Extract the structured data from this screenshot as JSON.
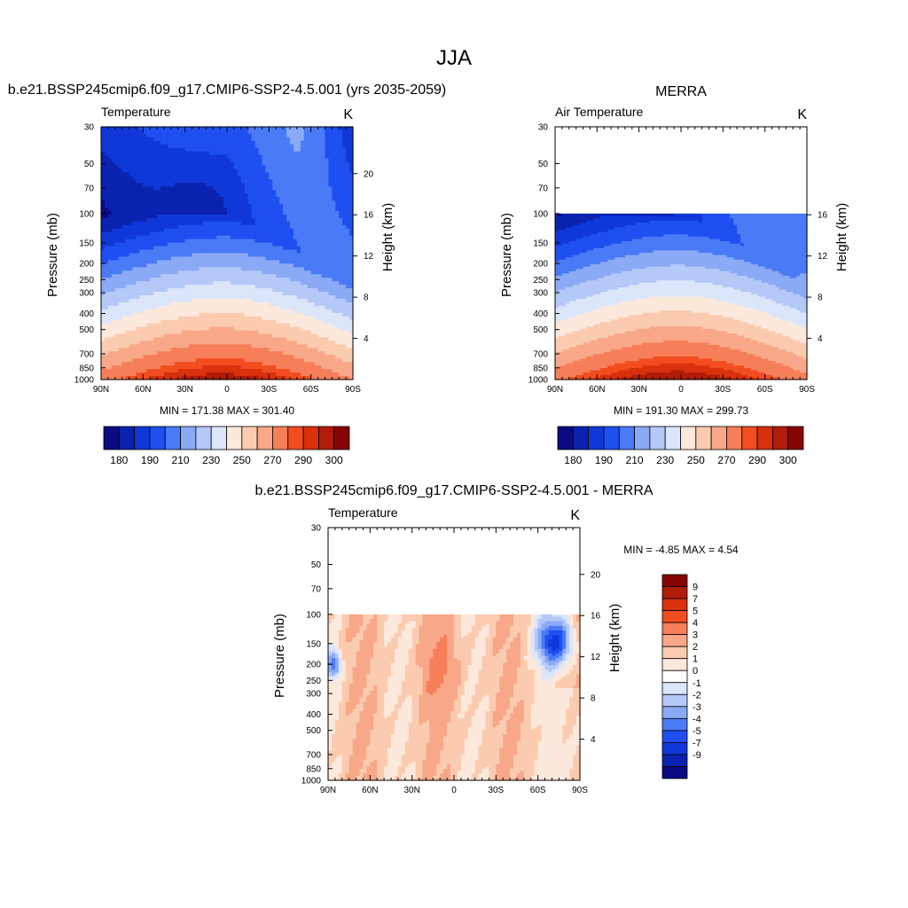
{
  "page": {
    "title": "JJA"
  },
  "chart_data": [
    {
      "type": "heatmap",
      "title": "b.e21.BSSP245cmip6.f09_g17.CMIP6-SSP2-4.5.001 (yrs 2035-2059)",
      "variable_label": "Temperature",
      "units": "K",
      "ylabel": "Pressure (mb)",
      "y2label": "Height (km)",
      "x_ticks": [
        "90N",
        "60N",
        "30N",
        "0",
        "30S",
        "60S",
        "90S"
      ],
      "y_ticks": [
        30,
        50,
        70,
        100,
        150,
        200,
        250,
        300,
        400,
        500,
        700,
        850,
        1000
      ],
      "y2_ticks": [
        4,
        8,
        12,
        16,
        20
      ],
      "ylim": [
        1000,
        30
      ],
      "min_max_text": "MIN = 171.38  MAX = 301.40",
      "colorbar_labels": [
        "180",
        "190",
        "210",
        "230",
        "250",
        "270",
        "290",
        "300"
      ],
      "colorbar_colors": [
        "#0a0a82",
        "#0a22b0",
        "#1038d8",
        "#1f4ff0",
        "#4a7af5",
        "#8aaaf5",
        "#b4c9f8",
        "#dbe6fb",
        "#fde9dc",
        "#fbcbb0",
        "#f8a888",
        "#f67f5a",
        "#f24d20",
        "#d9310e",
        "#b01c09",
        "#870404"
      ]
    },
    {
      "type": "heatmap",
      "title": "MERRA",
      "variable_label": "Air Temperature",
      "units": "K",
      "ylabel": "Pressure (mb)",
      "y2label": "Height (km)",
      "x_ticks": [
        "90N",
        "60N",
        "30N",
        "0",
        "30S",
        "60S",
        "90S"
      ],
      "y_ticks": [
        30,
        50,
        70,
        100,
        150,
        200,
        250,
        300,
        400,
        500,
        700,
        850,
        1000
      ],
      "y2_ticks": [
        4,
        8,
        12,
        16
      ],
      "ylim": [
        1000,
        30
      ],
      "data_top_pressure": 100,
      "min_max_text": "MIN = 191.30  MAX = 299.73",
      "colorbar_labels": [
        "180",
        "190",
        "210",
        "230",
        "250",
        "270",
        "290",
        "300"
      ],
      "colorbar_colors": [
        "#0a0a82",
        "#0a22b0",
        "#1038d8",
        "#1f4ff0",
        "#4a7af5",
        "#8aaaf5",
        "#b4c9f8",
        "#dbe6fb",
        "#fde9dc",
        "#fbcbb0",
        "#f8a888",
        "#f67f5a",
        "#f24d20",
        "#d9310e",
        "#b01c09",
        "#870404"
      ]
    },
    {
      "type": "heatmap",
      "title": "b.e21.BSSP245cmip6.f09_g17.CMIP6-SSP2-4.5.001 - MERRA",
      "variable_label": "Temperature",
      "units": "K",
      "ylabel": "Pressure (mb)",
      "y2label": "Height (km)",
      "x_ticks": [
        "90N",
        "60N",
        "30N",
        "0",
        "30S",
        "60S",
        "90S"
      ],
      "y_ticks": [
        30,
        50,
        70,
        100,
        150,
        200,
        250,
        300,
        400,
        500,
        700,
        850,
        1000
      ],
      "y2_ticks": [
        4,
        8,
        12,
        16,
        20
      ],
      "ylim": [
        1000,
        30
      ],
      "data_top_pressure": 100,
      "min_max_text": "MIN =  -4.85  MAX =   4.54",
      "colorbar_labels": [
        "9",
        "7",
        "5",
        "4",
        "3",
        "2",
        "1",
        "0",
        "-1",
        "-2",
        "-3",
        "-4",
        "-5",
        "-7",
        "-9"
      ],
      "colorbar_colors": [
        "#870404",
        "#b01c09",
        "#d9310e",
        "#f24d20",
        "#f67f5a",
        "#f8a888",
        "#fbcbb0",
        "#fde9dc",
        "#ffffff",
        "#dbe6fb",
        "#b4c9f8",
        "#8aaaf5",
        "#4a7af5",
        "#1f4ff0",
        "#1038d8",
        "#0a22b0",
        "#0a0a82"
      ]
    }
  ]
}
